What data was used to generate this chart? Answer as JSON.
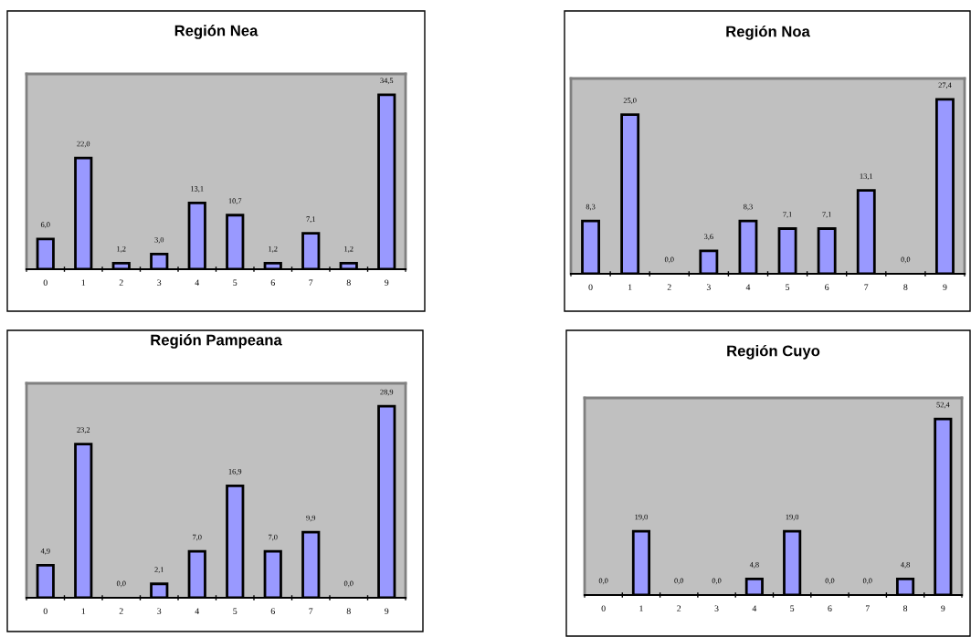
{
  "chart_data": [
    {
      "type": "bar",
      "title": "Región Nea",
      "categories": [
        "0",
        "1",
        "2",
        "3",
        "4",
        "5",
        "6",
        "7",
        "8",
        "9"
      ],
      "values": [
        6.0,
        22.0,
        1.2,
        3.0,
        13.1,
        10.7,
        1.2,
        7.1,
        1.2,
        34.5
      ],
      "value_labels": [
        "6,0",
        "22,0",
        "1,2",
        "3,0",
        "13,1",
        "10,7",
        "1,2",
        "7,1",
        "1,2",
        "34,5"
      ],
      "color": "#9999ff",
      "grid": false,
      "legend": false
    },
    {
      "type": "bar",
      "title": "Región Noa",
      "categories": [
        "0",
        "1",
        "2",
        "3",
        "4",
        "5",
        "6",
        "7",
        "8",
        "9"
      ],
      "values": [
        8.3,
        25.0,
        0.0,
        3.6,
        8.3,
        7.1,
        7.1,
        13.1,
        0.0,
        27.4
      ],
      "value_labels": [
        "8,3",
        "25,0",
        "0,0",
        "3,6",
        "8,3",
        "7,1",
        "7,1",
        "13,1",
        "0,0",
        "27,4"
      ],
      "color": "#9999ff",
      "grid": false,
      "legend": false
    },
    {
      "type": "bar",
      "title": "Región Pampeana",
      "categories": [
        "0",
        "1",
        "2",
        "3",
        "4",
        "5",
        "6",
        "7",
        "8",
        "9"
      ],
      "values": [
        4.9,
        23.2,
        0.0,
        2.1,
        7.0,
        16.9,
        7.0,
        9.9,
        0.0,
        28.9
      ],
      "value_labels": [
        "4,9",
        "23,2",
        "0,0",
        "2,1",
        "7,0",
        "16,9",
        "7,0",
        "9,9",
        "0,0",
        "28,9"
      ],
      "color": "#9999ff",
      "grid": false,
      "legend": false
    },
    {
      "type": "bar",
      "title": "Región Cuyo",
      "categories": [
        "0",
        "1",
        "2",
        "3",
        "4",
        "5",
        "6",
        "7",
        "8",
        "9"
      ],
      "values": [
        0.0,
        19.0,
        0.0,
        0.0,
        4.8,
        19.0,
        0.0,
        0.0,
        4.8,
        52.4
      ],
      "value_labels": [
        "0,0",
        "19,0",
        "0,0",
        "0,0",
        "4,8",
        "19,0",
        "0,0",
        "0,0",
        "4,8",
        "52,4"
      ],
      "color": "#9999ff",
      "grid": false,
      "legend": false
    }
  ]
}
